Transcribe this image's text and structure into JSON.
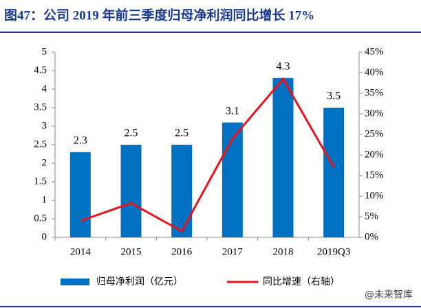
{
  "chart_data": {
    "type": "bar",
    "title": "图47：公司 2019 年前三季度归母净利润同比增长 17%",
    "categories": [
      "2014",
      "2015",
      "2016",
      "2017",
      "2018",
      "2019Q3"
    ],
    "series": [
      {
        "name": "归母净利润（亿元）",
        "type": "bar",
        "color": "#0070c0",
        "values": [
          2.3,
          2.5,
          2.5,
          3.1,
          4.3,
          3.5
        ]
      },
      {
        "name": "同比增速（右轴）",
        "type": "line",
        "axis": "y2",
        "color": "#e8141c",
        "values": [
          4,
          8.3,
          1.5,
          24,
          38.5,
          17
        ]
      }
    ],
    "ylim": [
      0,
      5
    ],
    "yticks": [
      0,
      0.5,
      1,
      1.5,
      2,
      2.5,
      3,
      3.5,
      4,
      4.5,
      5
    ],
    "y2lim": [
      0,
      45
    ],
    "y2ticks": [
      {
        "value": 0,
        "label": "0%"
      },
      {
        "value": 5,
        "label": "5%"
      },
      {
        "value": 10,
        "label": "10%"
      },
      {
        "value": 15,
        "label": "15%"
      },
      {
        "value": 20,
        "label": "20%"
      },
      {
        "value": 25,
        "label": "25%"
      },
      {
        "value": 30,
        "label": "30%"
      },
      {
        "value": 35,
        "label": "35%"
      },
      {
        "value": 40,
        "label": "40%"
      },
      {
        "value": 45,
        "label": "45%"
      }
    ],
    "legend": "bottom",
    "watermark": "@未来智库"
  }
}
